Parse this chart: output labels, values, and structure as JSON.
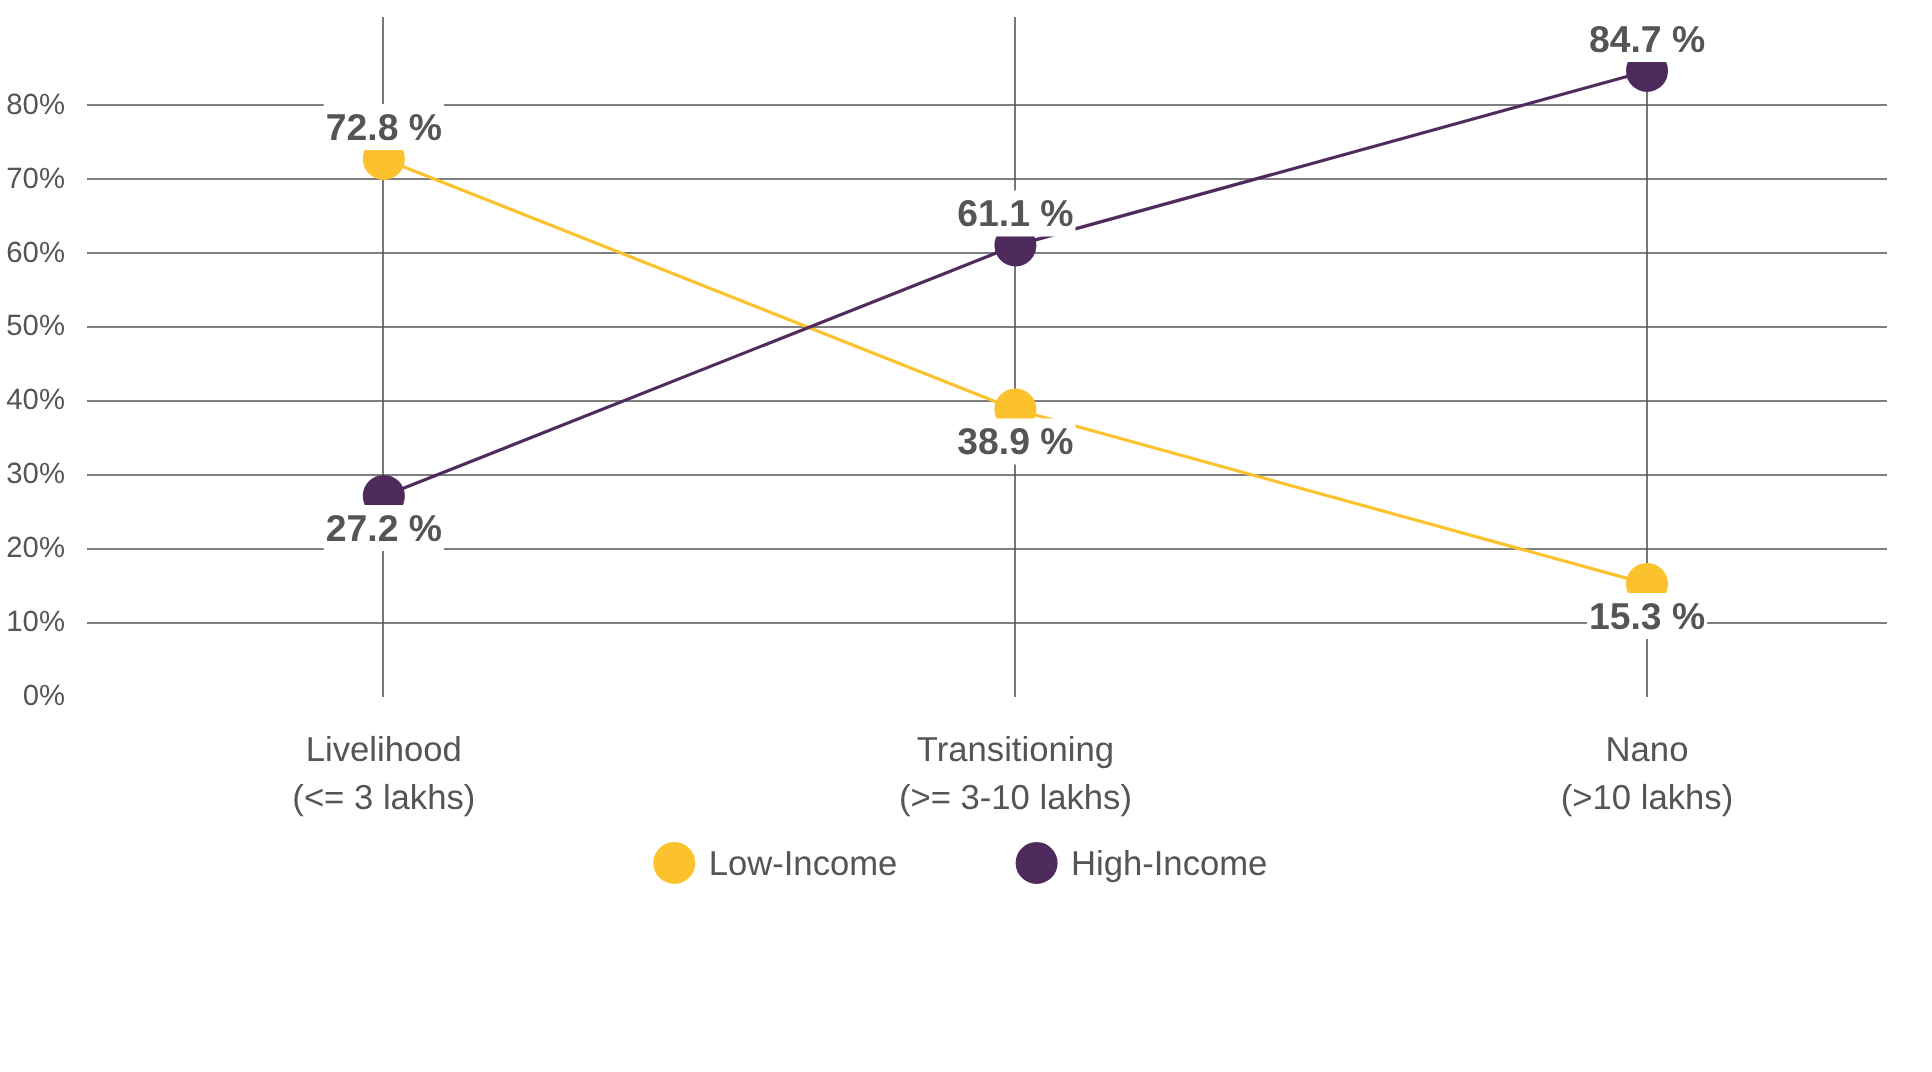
{
  "chart_data": {
    "type": "line",
    "categories": [
      "Livelihood\n(<= 3 lakhs)",
      "Transitioning\n(>= 3-10 lakhs)",
      "Nano\n(>10 lakhs)"
    ],
    "series": [
      {
        "name": "Low-Income",
        "color": "#fcc22d",
        "values": [
          72.8,
          38.9,
          15.3
        ],
        "value_labels": [
          "72.8 %",
          "38.9 %",
          "15.3 %"
        ]
      },
      {
        "name": "High-Income",
        "color": "#4f2a5c",
        "values": [
          27.2,
          61.1,
          84.7
        ],
        "value_labels": [
          "27.2 %",
          "61.1 %",
          "84.7 %"
        ]
      }
    ],
    "ylim": [
      0,
      92
    ],
    "yticks": [
      {
        "value": 0,
        "label": "0%"
      },
      {
        "value": 10,
        "label": "10%"
      },
      {
        "value": 20,
        "label": "20%"
      },
      {
        "value": 30,
        "label": "30%"
      },
      {
        "value": 40,
        "label": "40%"
      },
      {
        "value": 50,
        "label": "50%"
      },
      {
        "value": 60,
        "label": "60%"
      },
      {
        "value": 70,
        "label": "70%"
      },
      {
        "value": 80,
        "label": "80%"
      }
    ],
    "grid": true,
    "legend": "bottom",
    "marker": "circle",
    "line_style": "solid"
  }
}
